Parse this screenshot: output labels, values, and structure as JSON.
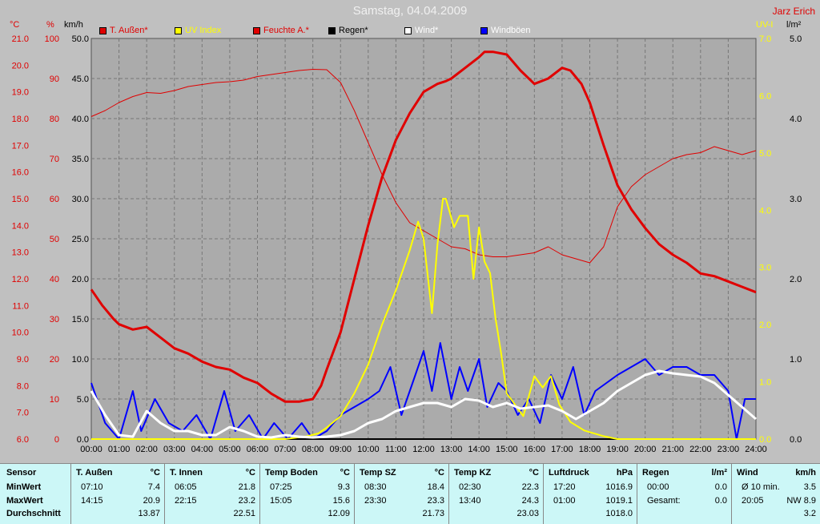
{
  "title": "Samstag, 04.04.2009",
  "user": "Jarz Erich",
  "colors": {
    "temp": "#e00000",
    "uv": "#ffff00",
    "hum": "#e00000",
    "rain": "#000000",
    "wind": "#ffffff",
    "gust": "#0000ff",
    "plot_bg": "#ababab"
  },
  "legend": [
    {
      "label": "T. Außen*",
      "color": "#e00000",
      "text_color": "#e00000"
    },
    {
      "label": "UV Index",
      "color": "#ffff00",
      "text_color": "#ffff00"
    },
    {
      "label": "Feuchte A.*",
      "color": "#e00000",
      "text_color": "#e00000"
    },
    {
      "label": "Regen*",
      "color": "#000000",
      "text_color": "#000000"
    },
    {
      "label": "Wind*",
      "color": "#ffffff",
      "text_color": "#ffffff"
    },
    {
      "label": "Windböen",
      "color": "#0000ff",
      "text_color": "#ffffff"
    }
  ],
  "chart_data": {
    "type": "line",
    "x_ticks": [
      "00:00",
      "01:00",
      "02:00",
      "03:00",
      "04:00",
      "05:00",
      "06:00",
      "07:00",
      "08:00",
      "09:00",
      "10:00",
      "11:00",
      "12:00",
      "13:00",
      "14:00",
      "15:00",
      "16:00",
      "17:00",
      "18:00",
      "19:00",
      "20:00",
      "21:00",
      "22:00",
      "23:00",
      "24:00"
    ],
    "xlim": [
      0,
      24
    ],
    "axes": {
      "temp": {
        "unit": "°C",
        "ylim": [
          6,
          21
        ],
        "ticks": [
          "21.0",
          "20.0",
          "19.0",
          "18.0",
          "17.0",
          "16.0",
          "15.0",
          "14.0",
          "13.0",
          "12.0",
          "11.0",
          "10.0",
          "9.0",
          "8.0",
          "7.0",
          "6.0"
        ]
      },
      "hum": {
        "unit": "%",
        "ylim": [
          0,
          100
        ],
        "ticks": [
          "100",
          "90",
          "80",
          "70",
          "60",
          "50",
          "40",
          "30",
          "20",
          "10",
          "0"
        ]
      },
      "wind": {
        "unit": "km/h",
        "ylim": [
          0,
          50
        ],
        "ticks": [
          "50.0",
          "45.0",
          "40.0",
          "35.0",
          "30.0",
          "25.0",
          "20.0",
          "15.0",
          "10.0",
          "5.0",
          "0.0"
        ]
      },
      "uv": {
        "unit": "UV-I",
        "ylim": [
          0,
          7
        ],
        "ticks": [
          "7.0",
          "6.0",
          "5.0",
          "4.0",
          "3.0",
          "2.0",
          "1.0",
          "0.0"
        ]
      },
      "rain": {
        "unit": "l/m²",
        "ylim": [
          0,
          5
        ],
        "ticks": [
          "5.0",
          "4.0",
          "3.0",
          "2.0",
          "1.0",
          "0.0"
        ]
      }
    },
    "series": [
      {
        "name": "T. Außen*",
        "axis": "temp",
        "x": [
          0,
          0.4,
          0.8,
          1,
          1.5,
          2,
          2.5,
          3,
          3.5,
          4,
          4.5,
          5,
          5.5,
          6,
          6.5,
          7,
          7.2,
          7.5,
          8,
          8.3,
          8.5,
          9,
          9.5,
          10,
          10.5,
          11,
          11.5,
          12,
          12.5,
          12.8,
          13,
          13.5,
          14,
          14.2,
          14.5,
          15,
          15.5,
          16,
          16.5,
          17,
          17.3,
          17.7,
          18,
          18.5,
          19,
          19.5,
          20,
          20.5,
          21,
          21.5,
          22,
          22.5,
          23,
          23.5,
          24
        ],
        "y": [
          11.6,
          11.0,
          10.5,
          10.3,
          10.1,
          10.2,
          9.8,
          9.4,
          9.2,
          8.9,
          8.7,
          8.6,
          8.3,
          8.1,
          7.7,
          7.4,
          7.4,
          7.4,
          7.5,
          8.0,
          8.6,
          10.0,
          12.0,
          14.0,
          15.8,
          17.2,
          18.2,
          19.0,
          19.3,
          19.4,
          19.5,
          19.9,
          20.3,
          20.5,
          20.5,
          20.4,
          19.8,
          19.3,
          19.5,
          19.9,
          19.8,
          19.3,
          18.6,
          17.0,
          15.5,
          14.6,
          13.9,
          13.3,
          12.9,
          12.6,
          12.2,
          12.1,
          11.9,
          11.7,
          11.5
        ]
      },
      {
        "name": "Feuchte A.*",
        "axis": "hum",
        "x": [
          0,
          0.5,
          1,
          1.5,
          2,
          2.5,
          3,
          3.5,
          4,
          4.5,
          5,
          5.5,
          6,
          6.5,
          7,
          7.5,
          8,
          8.5,
          9,
          9.5,
          10,
          10.5,
          11,
          11.5,
          12,
          12.5,
          13,
          13.5,
          14,
          14.5,
          15,
          15.5,
          16,
          16.5,
          17,
          17.5,
          18,
          18.5,
          19,
          19.5,
          20,
          20.5,
          21,
          21.5,
          22,
          22.5,
          23,
          23.5,
          24
        ],
        "y": [
          80.5,
          82,
          84,
          85.5,
          86.5,
          86.3,
          87,
          88,
          88.5,
          89,
          89.2,
          89.6,
          90.5,
          91,
          91.5,
          92,
          92.3,
          92.2,
          89,
          82,
          74,
          66,
          59,
          54,
          52,
          50,
          48,
          47.5,
          46,
          45.5,
          45.5,
          46,
          46.5,
          48,
          46,
          45,
          44,
          48,
          58,
          63,
          66,
          68,
          70,
          71,
          71.5,
          73,
          72,
          71,
          72
        ]
      },
      {
        "name": "UV Index",
        "axis": "uv",
        "x": [
          0,
          7,
          7.8,
          8.2,
          8.5,
          9,
          9.5,
          10,
          10.5,
          11,
          11.5,
          11.8,
          12,
          12.3,
          12.5,
          12.7,
          12.8,
          13.1,
          13.3,
          13.6,
          13.8,
          14,
          14.2,
          14.4,
          14.6,
          14.8,
          15,
          15.3,
          15.6,
          16,
          16.3,
          16.6,
          16.9,
          17.3,
          17.8,
          18.5,
          19,
          24
        ],
        "y": [
          0,
          0,
          0.05,
          0.1,
          0.2,
          0.4,
          0.8,
          1.3,
          2.0,
          2.6,
          3.3,
          3.8,
          3.5,
          2.2,
          3.4,
          4.2,
          4.2,
          3.7,
          3.9,
          3.9,
          2.8,
          3.7,
          3.1,
          2.9,
          2.1,
          1.5,
          0.8,
          0.6,
          0.4,
          1.1,
          0.9,
          1.1,
          0.6,
          0.3,
          0.15,
          0.05,
          0,
          0
        ]
      },
      {
        "name": "Regen*",
        "axis": "rain",
        "x": [
          0,
          24
        ],
        "y": [
          0,
          0
        ]
      },
      {
        "name": "Wind*",
        "axis": "wind",
        "x": [
          0,
          0.5,
          1,
          1.5,
          2,
          2.5,
          3,
          3.5,
          4,
          4.5,
          5,
          5.5,
          6,
          6.5,
          7,
          7.5,
          8,
          8.5,
          9,
          9.5,
          10,
          10.5,
          11,
          11.5,
          12,
          12.5,
          13,
          13.5,
          14,
          14.5,
          15,
          15.5,
          16,
          16.5,
          17,
          17.5,
          18,
          18.5,
          19,
          19.5,
          20,
          20.5,
          21,
          21.5,
          22,
          22.5,
          23,
          23.5,
          24
        ],
        "y": [
          6,
          3,
          0.5,
          0.3,
          3.5,
          2,
          1,
          1,
          0.5,
          0.5,
          1.5,
          1,
          0.3,
          0.2,
          0.5,
          0.3,
          0.2,
          0.3,
          0.5,
          1,
          2,
          2.5,
          3.5,
          4,
          4.5,
          4.5,
          4,
          5,
          4.8,
          4,
          4.5,
          3.8,
          4,
          4.2,
          3.5,
          2.5,
          3.5,
          4.5,
          6,
          7,
          8,
          8.5,
          8.2,
          8,
          7.8,
          7,
          5.5,
          4,
          2.5
        ]
      },
      {
        "name": "Windböen",
        "axis": "wind",
        "x": [
          0,
          0.5,
          1,
          1.5,
          1.8,
          2.3,
          2.8,
          3.3,
          3.8,
          4.3,
          4.8,
          5.2,
          5.7,
          6.2,
          6.6,
          7.1,
          7.6,
          8,
          8.5,
          9,
          9.5,
          10,
          10.4,
          10.8,
          11.2,
          11.6,
          12,
          12.3,
          12.6,
          13,
          13.3,
          13.6,
          14,
          14.3,
          14.7,
          15,
          15.4,
          15.8,
          16.2,
          16.6,
          17,
          17.4,
          17.8,
          18.2,
          18.6,
          19,
          19.5,
          20,
          20.5,
          21,
          21.5,
          22,
          22.5,
          23,
          23.3,
          23.6,
          24
        ],
        "y": [
          7,
          2,
          0,
          6,
          1,
          5,
          2,
          1,
          3,
          0,
          6,
          1,
          3,
          0,
          2,
          0,
          2,
          0,
          1,
          3,
          4,
          5,
          6,
          9,
          3,
          7,
          11,
          6,
          12,
          5,
          9,
          6,
          10,
          4,
          7,
          6,
          3,
          5,
          2,
          8,
          5,
          9,
          3,
          6,
          7,
          8,
          9,
          10,
          8,
          9,
          9,
          8,
          8,
          6,
          0,
          5,
          5
        ]
      }
    ]
  },
  "table": {
    "headers": [
      "Sensor",
      "T. Außen",
      "T. Innen",
      "Temp Boden",
      "Temp SZ",
      "Temp KZ",
      "Luftdruck",
      "Regen",
      "Wind"
    ],
    "units": [
      "°C",
      "°C",
      "°C",
      "°C",
      "°C",
      "hPa",
      "l/m²",
      "km/h"
    ],
    "row_labels": [
      "MinWert",
      "MaxWert",
      "Durchschnitt"
    ],
    "min_times": [
      "07:10",
      "06:05",
      "07:25",
      "08:30",
      "02:30",
      "17:20",
      "00:00",
      "Ø 10 min."
    ],
    "min_vals": [
      "7.4",
      "21.8",
      "9.3",
      "18.4",
      "22.3",
      "1016.9",
      "0.0",
      "3.5"
    ],
    "max_times": [
      "14:15",
      "22:15",
      "15:05",
      "23:30",
      "13:40",
      "01:00",
      "Gesamt:",
      "20:05"
    ],
    "max_vals": [
      "20.9",
      "23.2",
      "15.6",
      "23.3",
      "24.3",
      "1019.1",
      "0.0",
      "NW 8.9"
    ],
    "avg_vals": [
      "13.87",
      "22.51",
      "12.09",
      "21.73",
      "23.03",
      "1018.0",
      "",
      "3.2"
    ]
  }
}
